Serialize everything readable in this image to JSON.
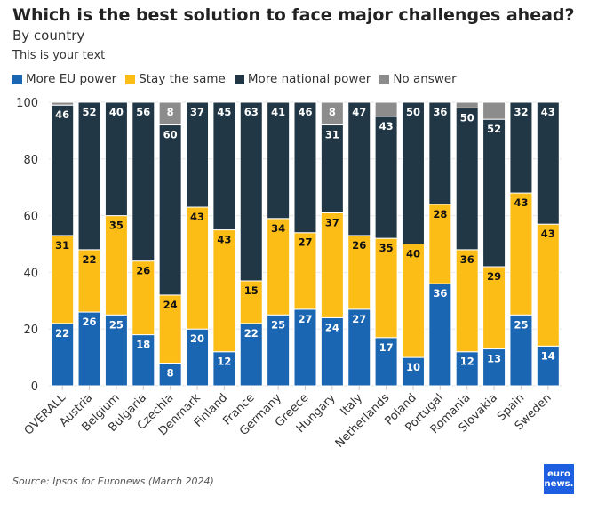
{
  "title": "Which is the best solution to face major challenges ahead?",
  "subtitle": "By country",
  "note": "This is your text",
  "source": "Source: Ipsos for Euronews (March 2024)",
  "logo": {
    "line1": "euro",
    "line2": "news."
  },
  "chart_data": {
    "type": "bar",
    "stacked": true,
    "title": "Which is the best solution to face major challenges ahead?",
    "ylim": [
      0,
      100
    ],
    "yticks": [
      0,
      20,
      40,
      60,
      80,
      100
    ],
    "grid": true,
    "legend_placement": "top-left",
    "categories": [
      "OVERALL",
      "Austria",
      "Belgium",
      "Bulgaria",
      "Czechia",
      "Denmark",
      "Finland",
      "France",
      "Germany",
      "Greece",
      "Hungary",
      "Italy",
      "Netherlands",
      "Poland",
      "Portugal",
      "Romania",
      "Slovakia",
      "Spain",
      "Sweden"
    ],
    "series": [
      {
        "name": "More EU power",
        "color": "#1a66b3",
        "label_color": "#ffffff",
        "values": [
          22,
          26,
          25,
          18,
          8,
          20,
          12,
          22,
          25,
          27,
          24,
          27,
          17,
          10,
          36,
          12,
          13,
          25,
          14
        ]
      },
      {
        "name": "Stay the same",
        "color": "#fdbd17",
        "label_color": "#111111",
        "values": [
          31,
          22,
          35,
          26,
          24,
          43,
          43,
          15,
          34,
          27,
          37,
          26,
          35,
          40,
          28,
          36,
          29,
          43,
          43
        ]
      },
      {
        "name": "More national power",
        "color": "#213745",
        "label_color": "#ffffff",
        "values": [
          46,
          52,
          40,
          56,
          60,
          37,
          45,
          63,
          41,
          46,
          31,
          47,
          43,
          50,
          36,
          50,
          52,
          32,
          43
        ]
      },
      {
        "name": "No answer",
        "color": "#8c8c8c",
        "label_color": "#ffffff",
        "values": [
          1,
          0,
          0,
          0,
          8,
          0,
          0,
          0,
          0,
          0,
          8,
          0,
          5,
          0,
          0,
          2,
          6,
          0,
          0
        ]
      }
    ]
  }
}
